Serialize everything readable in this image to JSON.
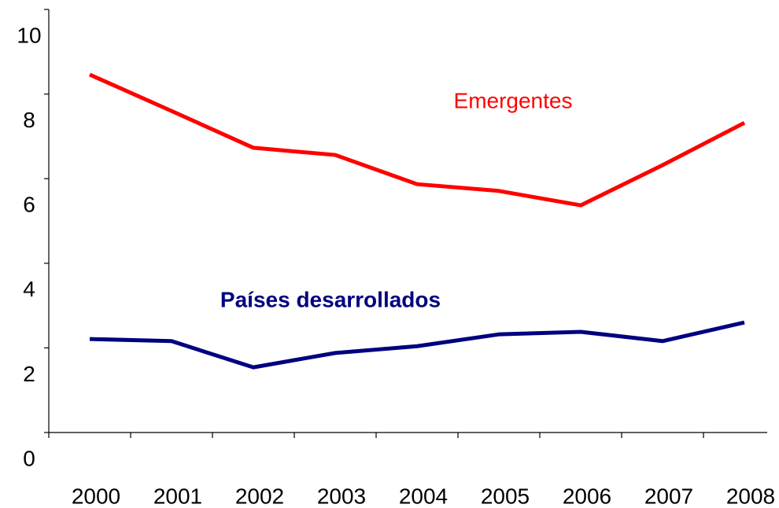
{
  "chart_data": {
    "type": "line",
    "categories": [
      "2000",
      "2001",
      "2002",
      "2003",
      "2004",
      "2005",
      "2006",
      "2007",
      "2008"
    ],
    "series": [
      {
        "name": "Emergentes",
        "color": "#ff0000",
        "values": [
          8.46,
          7.6,
          6.73,
          6.56,
          5.87,
          5.71,
          5.37,
          6.32,
          7.32
        ]
      },
      {
        "name": "Países desarrollados",
        "color": "#000080",
        "values": [
          2.21,
          2.16,
          1.54,
          1.88,
          2.04,
          2.32,
          2.38,
          2.16,
          2.6
        ]
      }
    ],
    "ylim": [
      0,
      10
    ],
    "yticks": [
      0,
      2,
      4,
      6,
      8,
      10
    ],
    "grid": false
  }
}
